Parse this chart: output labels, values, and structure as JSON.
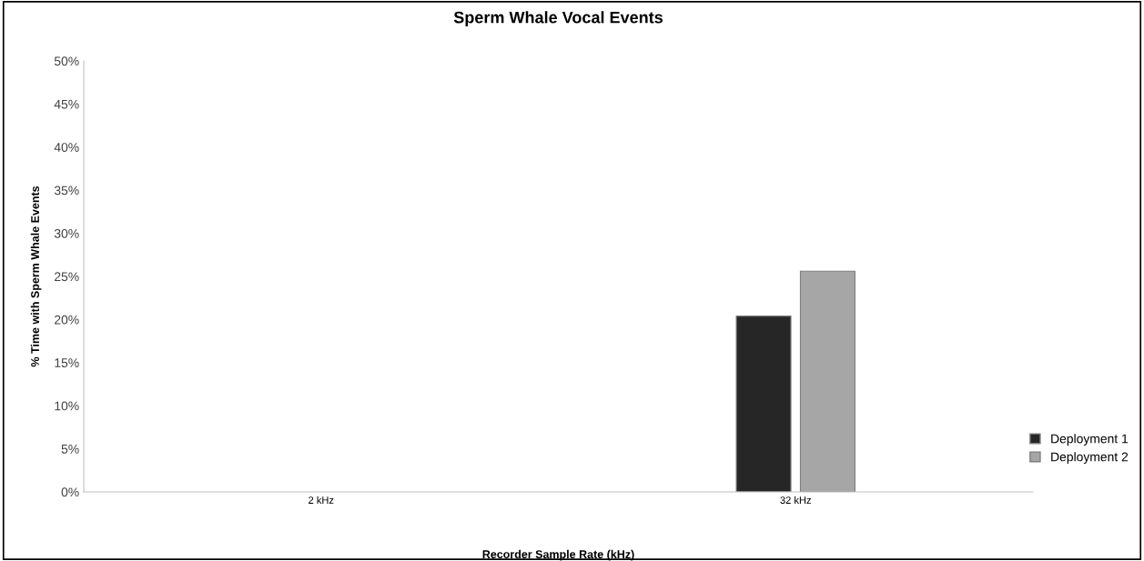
{
  "chart_data": {
    "type": "bar",
    "title": "Sperm Whale Vocal Events",
    "xlabel": "Recorder Sample Rate (kHz)",
    "ylabel": "% Time with Sperm Whale Events",
    "categories": [
      "2 kHz",
      "32 kHz"
    ],
    "series": [
      {
        "name": "Deployment 1",
        "color": "#262626",
        "values": [
          null,
          20.4
        ]
      },
      {
        "name": "Deployment 2",
        "color": "#a6a6a6",
        "values": [
          null,
          25.6
        ]
      }
    ],
    "ylim": [
      0,
      50
    ],
    "yticks": [
      {
        "value": 0,
        "label": "0%"
      },
      {
        "value": 5,
        "label": "5%"
      },
      {
        "value": 10,
        "label": "10%"
      },
      {
        "value": 15,
        "label": "15%"
      },
      {
        "value": 20,
        "label": "20%"
      },
      {
        "value": 25,
        "label": "25%"
      },
      {
        "value": 30,
        "label": "30%"
      },
      {
        "value": 35,
        "label": "35%"
      },
      {
        "value": 40,
        "label": "40%"
      },
      {
        "value": 45,
        "label": "45%"
      },
      {
        "value": 50,
        "label": "50%"
      }
    ],
    "grid": false,
    "legend": "right"
  }
}
